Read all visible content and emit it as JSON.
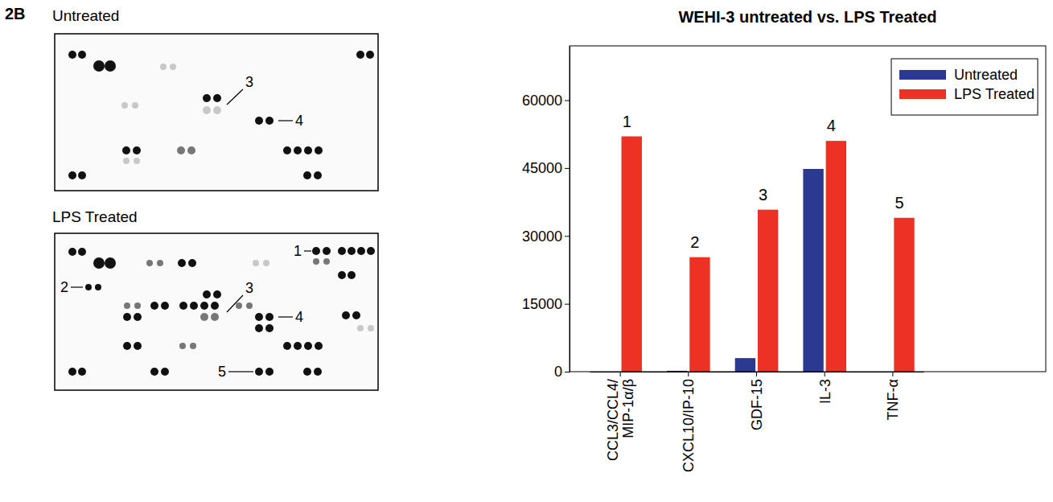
{
  "panel": "2B",
  "arrays": [
    {
      "title": "Untreated",
      "labels": [
        "3",
        "4"
      ]
    },
    {
      "title": "LPS Treated",
      "labels": [
        "1",
        "2",
        "3",
        "4",
        "5"
      ]
    }
  ],
  "chart_data": {
    "type": "bar",
    "title": "WEHI-3 untreated vs. LPS Treated",
    "categories": [
      "CCL3/CCL4/MIP-1α/β",
      "CXCL10/IP-10",
      "GDF-15",
      "IL-3",
      "TNF-α"
    ],
    "series": [
      {
        "name": "Untreated",
        "color": "#2b3990",
        "values": [
          0,
          200,
          3000,
          44800,
          0
        ]
      },
      {
        "name": "LPS Treated",
        "color": "#ed3124",
        "values": [
          52000,
          25300,
          35800,
          51000,
          34000
        ]
      }
    ],
    "annotations": [
      "1",
      "2",
      "3",
      "4",
      "5"
    ],
    "ylim": [
      0,
      72000
    ],
    "yticks": [
      0,
      15000,
      30000,
      45000,
      60000
    ],
    "legend": "top-right",
    "grid": false
  }
}
